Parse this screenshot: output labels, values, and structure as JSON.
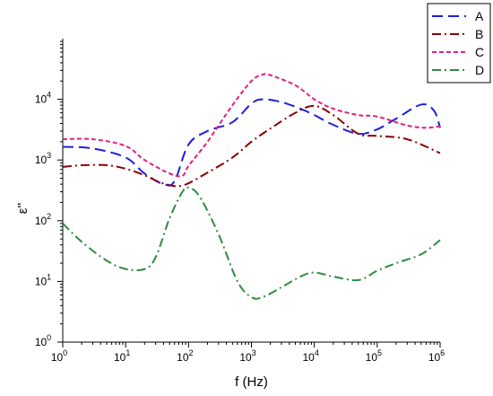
{
  "chart_data": {
    "type": "line",
    "xlabel": "f (Hz)",
    "ylabel": "ε''",
    "xscale": "log",
    "yscale": "log",
    "xlim": [
      1,
      1000000
    ],
    "ylim": [
      1,
      100000
    ],
    "x_ticks": [
      1,
      10,
      100,
      1000,
      10000,
      100000,
      1000000
    ],
    "x_tick_labels": [
      [
        "10",
        "0"
      ],
      [
        "10",
        "1"
      ],
      [
        "10",
        "2"
      ],
      [
        "10",
        "3"
      ],
      [
        "10",
        "4"
      ],
      [
        "10",
        "5"
      ],
      [
        "10",
        "6"
      ]
    ],
    "y_ticks": [
      1,
      10,
      100,
      1000,
      10000
    ],
    "y_tick_labels": [
      [
        "10",
        "0"
      ],
      [
        "10",
        "1"
      ],
      [
        "10",
        "2"
      ],
      [
        "10",
        "3"
      ],
      [
        "10",
        "4"
      ]
    ],
    "grid": false,
    "legend_position": "top-right",
    "series": [
      {
        "name": "A",
        "color": "#1f1fdd",
        "dash": "12,6",
        "x": [
          1,
          3,
          10,
          20,
          40,
          60,
          100,
          200,
          500,
          1000,
          1500,
          3000,
          6000,
          10000,
          20000,
          50000,
          100000,
          200000,
          500000,
          800000,
          1000000
        ],
        "y": [
          1650,
          1550,
          1100,
          600,
          400,
          450,
          1800,
          3000,
          4200,
          8500,
          10000,
          9000,
          7000,
          5500,
          3800,
          2700,
          3200,
          4800,
          8200,
          6500,
          3400
        ]
      },
      {
        "name": "B",
        "color": "#8b0000",
        "dash": "10,4,2,4",
        "x": [
          1,
          2,
          5,
          10,
          20,
          40,
          80,
          200,
          500,
          1000,
          2000,
          5000,
          10000,
          20000,
          50000,
          100000,
          300000,
          1000000
        ],
        "y": [
          770,
          820,
          820,
          720,
          560,
          410,
          380,
          620,
          1100,
          2000,
          3300,
          6000,
          7800,
          5500,
          2700,
          2500,
          2200,
          1300
        ]
      },
      {
        "name": "C",
        "color": "#e0207f",
        "dash": "5,3",
        "x": [
          1,
          3,
          10,
          20,
          50,
          80,
          100,
          200,
          500,
          1000,
          1500,
          2000,
          5000,
          10000,
          20000,
          50000,
          100000,
          300000,
          600000,
          1000000
        ],
        "y": [
          2200,
          2200,
          1700,
          1000,
          600,
          550,
          800,
          2000,
          8000,
          20000,
          25500,
          25000,
          17000,
          10000,
          7000,
          5500,
          5200,
          3700,
          3400,
          3600
        ]
      },
      {
        "name": "D",
        "color": "#2e8b3f",
        "dash": "10,4,2,4",
        "x": [
          1,
          2,
          5,
          10,
          20,
          30,
          50,
          80,
          100,
          150,
          300,
          600,
          1000,
          1500,
          3000,
          6000,
          10000,
          20000,
          50000,
          100000,
          200000,
          500000,
          1000000
        ],
        "y": [
          90,
          45,
          22,
          16,
          16,
          25,
          110,
          300,
          350,
          250,
          60,
          10,
          5.5,
          5.5,
          8,
          12,
          14,
          12,
          10.5,
          15,
          20,
          28,
          48
        ]
      }
    ]
  }
}
